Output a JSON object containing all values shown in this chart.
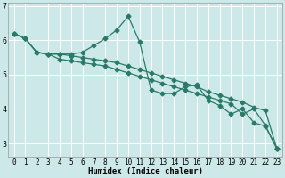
{
  "xlabel": "Humidex (Indice chaleur)",
  "bg_color": "#cce8e8",
  "grid_color": "#ffffff",
  "line_color": "#2a7a6a",
  "x_values": [
    0,
    1,
    2,
    3,
    4,
    5,
    6,
    7,
    8,
    9,
    10,
    11,
    12,
    13,
    14,
    15,
    16,
    17,
    18,
    19,
    20,
    21,
    22,
    23
  ],
  "line1": [
    6.2,
    6.05,
    5.65,
    5.6,
    5.6,
    5.55,
    5.5,
    5.45,
    5.4,
    5.35,
    5.25,
    5.15,
    5.05,
    4.95,
    4.85,
    4.75,
    4.65,
    4.5,
    4.4,
    4.3,
    4.2,
    4.05,
    3.95,
    2.85
  ],
  "line2": [
    6.2,
    6.05,
    5.65,
    5.6,
    5.6,
    5.6,
    5.65,
    5.85,
    6.05,
    6.3,
    6.7,
    5.95,
    4.55,
    4.45,
    4.45,
    4.65,
    4.7,
    4.25,
    4.1,
    3.85,
    4.0,
    3.6,
    3.5,
    2.85
  ],
  "line3_markers": [
    0,
    1,
    2,
    3,
    7,
    8,
    9,
    10,
    11,
    14,
    15,
    16,
    17,
    18,
    19,
    20,
    21,
    22,
    23
  ],
  "line3": [
    6.2,
    6.05,
    5.65,
    5.6,
    5.45,
    5.4,
    5.35,
    5.3,
    5.25,
    5.15,
    5.05,
    4.95,
    4.85,
    4.75,
    4.65,
    4.55,
    4.45,
    4.35,
    4.25,
    4.15,
    3.85,
    4.0,
    3.52,
    2.85
  ],
  "ylim": [
    2.6,
    7.1
  ],
  "yticks": [
    3,
    4,
    5,
    6,
    7
  ],
  "xticks": [
    0,
    1,
    2,
    3,
    4,
    5,
    6,
    7,
    8,
    9,
    10,
    11,
    12,
    13,
    14,
    15,
    16,
    17,
    18,
    19,
    20,
    21,
    22,
    23
  ],
  "tick_fontsize": 5.5,
  "xlabel_fontsize": 6.5
}
